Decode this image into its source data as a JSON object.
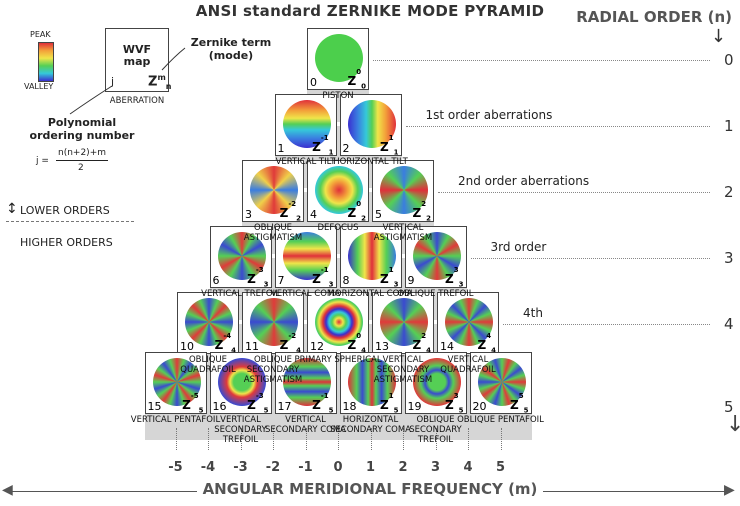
{
  "title": "ANSI standard ZERNIKE MODE PYRAMID",
  "radial_title": "RADIAL ORDER (n)",
  "axis_title": "ANGULAR MERIDIONAL FREQUENCY (m)",
  "legend": {
    "peak": "PEAK",
    "valley": "VALLEY"
  },
  "key_box": {
    "line1": "WVF",
    "line2": "map",
    "j": "j",
    "z": "Z",
    "m": "m",
    "n": "n",
    "caption": "ABERRATION"
  },
  "zernike_term_label": "Zernike term\n(mode)",
  "poly_label": "Polynomial\nordering number",
  "formula": {
    "lhs": "j =",
    "num": "n(n+2)+m",
    "den": "2"
  },
  "orders": {
    "lower": "LOWER ORDERS",
    "higher": "HIGHER ORDERS"
  },
  "row_notes": [
    "",
    "1st order aberrations",
    "2nd order aberrations",
    "3rd order",
    "4th",
    ""
  ],
  "radial_orders": [
    "0",
    "1",
    "2",
    "3",
    "4",
    "5"
  ],
  "m_values": [
    "-5",
    "-4",
    "-3",
    "-2",
    "-1",
    "0",
    "1",
    "2",
    "3",
    "4",
    "5"
  ],
  "modes": [
    {
      "j": "0",
      "n": "0",
      "m": "0",
      "label": "PISTON"
    },
    {
      "j": "1",
      "n": "1",
      "m": "-1",
      "label": "VERTICAL TILT"
    },
    {
      "j": "2",
      "n": "1",
      "m": "1",
      "label": "HORIZONTAL TILT"
    },
    {
      "j": "3",
      "n": "2",
      "m": "-2",
      "label": "OBLIQUE ASTIGMATISM"
    },
    {
      "j": "4",
      "n": "2",
      "m": "0",
      "label": "DEFOCUS"
    },
    {
      "j": "5",
      "n": "2",
      "m": "2",
      "label": "VERTICAL ASTIGMATISM"
    },
    {
      "j": "6",
      "n": "3",
      "m": "-3",
      "label": "VERTICAL TREFOIL"
    },
    {
      "j": "7",
      "n": "3",
      "m": "-1",
      "label": "VERTICAL COMA"
    },
    {
      "j": "8",
      "n": "3",
      "m": "1",
      "label": "HORIZONTAL COMA"
    },
    {
      "j": "9",
      "n": "3",
      "m": "3",
      "label": "OBLIQUE TREFOIL"
    },
    {
      "j": "10",
      "n": "4",
      "m": "-4",
      "label": "OBLIQUE QUADRAFOIL"
    },
    {
      "j": "11",
      "n": "4",
      "m": "-2",
      "label": "OBLIQUE SECONDARY ASTIGMATISM"
    },
    {
      "j": "12",
      "n": "4",
      "m": "0",
      "label": "PRIMARY SPHERICAL"
    },
    {
      "j": "13",
      "n": "4",
      "m": "2",
      "label": "VERTICAL SECONDARY ASTIGMATISM"
    },
    {
      "j": "14",
      "n": "4",
      "m": "4",
      "label": "VERTICAL QUADRAFOIL"
    },
    {
      "j": "15",
      "n": "5",
      "m": "-5",
      "label": "VERTICAL PENTAFOIL"
    },
    {
      "j": "16",
      "n": "5",
      "m": "-3",
      "label": "VERTICAL SECONDARY TREFOIL"
    },
    {
      "j": "17",
      "n": "5",
      "m": "-1",
      "label": "VERTICAL SECONDARY COMA"
    },
    {
      "j": "18",
      "n": "5",
      "m": "1",
      "label": "HORIZONTAL SECONDARY COMA"
    },
    {
      "j": "19",
      "n": "5",
      "m": "3",
      "label": "OBLIQUE SECONDARY TREFOIL"
    },
    {
      "j": "20",
      "n": "5",
      "m": "5",
      "label": "OBLIQUE PENTAFOIL"
    }
  ]
}
